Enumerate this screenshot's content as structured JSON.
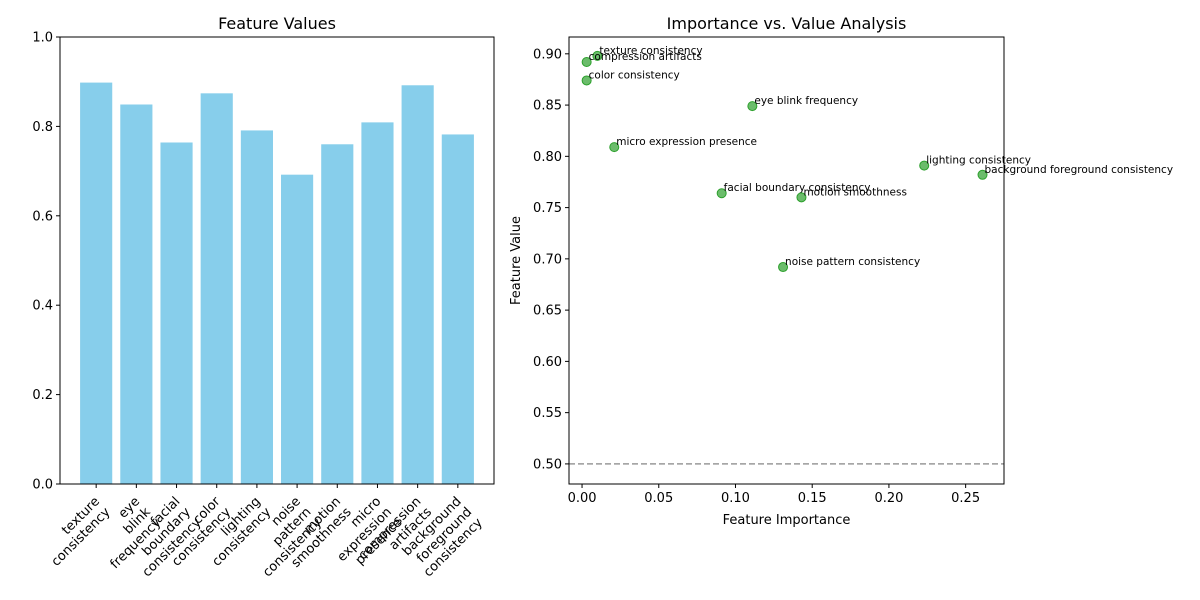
{
  "chart_data": [
    {
      "type": "bar",
      "title": "Feature Values",
      "categories": [
        "texture\nconsistency",
        "eye\nblink\nfrequency",
        "facial\nboundary\nconsistency",
        "color\nconsistency",
        "lighting\nconsistency",
        "noise\npattern\nconsistency",
        "motion\nsmoothness",
        "micro\nexpression\npresence",
        "compression\nartifacts",
        "background\nforeground\nconsistency"
      ],
      "values": [
        0.898,
        0.849,
        0.764,
        0.874,
        0.791,
        0.692,
        0.76,
        0.809,
        0.892,
        0.782
      ],
      "color": "#87ceeb",
      "ylim": [
        0,
        1
      ],
      "yticks": [
        {
          "value": 0,
          "label": "0.0"
        },
        0.2,
        0.4,
        0.6,
        0.8,
        {
          "value": 1,
          "label": "1.0"
        }
      ]
    },
    {
      "type": "scatter",
      "title": "Importance vs. Value Analysis",
      "xlabel": "Feature Importance",
      "ylabel": "Feature Value",
      "x": [
        0.01,
        0.003,
        0.003,
        0.111,
        0.021,
        0.223,
        0.261,
        0.091,
        0.143,
        0.131
      ],
      "series": [
        {
          "color": "#2ca02c",
          "values": [
            0.898,
            0.892,
            0.874,
            0.849,
            0.809,
            0.791,
            0.782,
            0.764,
            0.76,
            0.692
          ]
        }
      ],
      "labels": [
        "texture consistency",
        "compression artifacts",
        "color consistency",
        "eye blink frequency",
        "micro expression presence",
        "lighting consistency",
        "background foreground consistency",
        "facial boundary consistency",
        "motion smoothness",
        "noise pattern consistency"
      ],
      "reference_line": {
        "y": 0.5,
        "color": "#999999",
        "style": "dashed"
      },
      "xlim": [
        -0.0085,
        0.275
      ],
      "ylim": [
        0.4804,
        0.9164
      ],
      "xticks": [
        {
          "value": 0,
          "label": "0.00"
        },
        0.05,
        {
          "value": 0.1,
          "label": "0.10"
        },
        0.15,
        {
          "value": 0.2,
          "label": "0.20"
        },
        0.25
      ],
      "yticks": [
        {
          "value": 0.5,
          "label": "0.50"
        },
        0.55,
        {
          "value": 0.6,
          "label": "0.60"
        },
        0.65,
        {
          "value": 0.7,
          "label": "0.70"
        },
        0.75,
        {
          "value": 0.8,
          "label": "0.80"
        },
        0.85,
        {
          "value": 0.9,
          "label": "0.90"
        }
      ]
    }
  ]
}
